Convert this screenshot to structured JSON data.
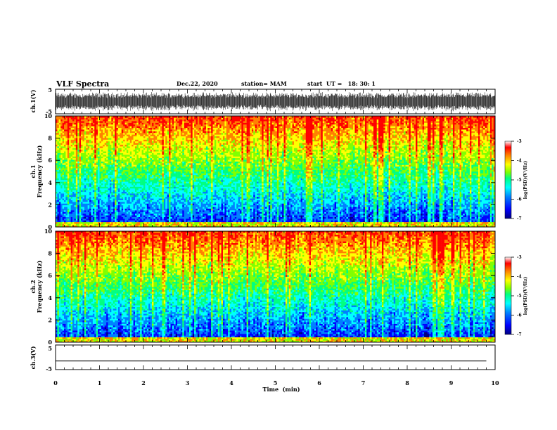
{
  "header": {
    "title": "VLF Spectra",
    "date": "Dec.22, 2020",
    "station": "station= MAM",
    "start": "start  UT =   18: 30: 1"
  },
  "colors": {
    "spectrum": [
      "#000080",
      "#0000ff",
      "#0080ff",
      "#00ffff",
      "#00ff80",
      "#80ff00",
      "#ffff00",
      "#ff8000",
      "#ff0000"
    ],
    "waveform": "#000000"
  },
  "chart_data": [
    {
      "type": "line",
      "name": "ch1-waveform",
      "ylabel": "ch.1(V)",
      "ylim": [
        -5,
        5
      ],
      "yticks": [
        "5",
        "-5"
      ],
      "xlim": [
        0,
        10
      ],
      "note_values": "dense noise waveform roughly spanning -4 to 4 V"
    },
    {
      "type": "heatmap",
      "name": "ch1-spectrogram",
      "ylabel": "ch.1\nFrequency (kHz)",
      "ylim": [
        0,
        10
      ],
      "yticks": [
        "0",
        "2",
        "4",
        "6",
        "8",
        "10"
      ],
      "xlim": [
        0,
        10
      ],
      "colorbar": {
        "label": "log(PSD)(V²/Hz)",
        "range": [
          -7,
          -3
        ],
        "ticks": [
          "-3",
          "-4",
          "-5",
          "-6",
          "-7"
        ]
      }
    },
    {
      "type": "heatmap",
      "name": "ch2-spectrogram",
      "ylabel": "ch.2\nFrequency (kHz)",
      "ylim": [
        0,
        10
      ],
      "yticks": [
        "0",
        "2",
        "4",
        "6",
        "8",
        "10"
      ],
      "xlim": [
        0,
        10
      ],
      "colorbar": {
        "label": "log(PSD)(V²/Hz)",
        "range": [
          -7,
          -3
        ],
        "ticks": [
          "-3",
          "-4",
          "-5",
          "-6",
          "-7"
        ]
      }
    },
    {
      "type": "line",
      "name": "ch3-waveform",
      "ylabel": "ch.3(V)",
      "ylim": [
        -5,
        5
      ],
      "yticks": [
        "5",
        "-5"
      ],
      "xlim": [
        0,
        10
      ],
      "x": [
        0,
        9.8
      ],
      "y": [
        -1.5,
        -1.5
      ]
    }
  ],
  "xaxis": {
    "label": "Time  (min)",
    "ticks": [
      "0",
      "1",
      "2",
      "3",
      "4",
      "5",
      "6",
      "7",
      "8",
      "9",
      "10"
    ]
  },
  "axis_labels": {
    "ch1_wave": "ch.1(V)",
    "ch1_spec_a": "ch.1",
    "ch1_spec_b": "Frequency (kHz)",
    "ch2_spec_a": "ch.2",
    "ch2_spec_b": "Frequency (kHz)",
    "ch3_wave": "ch.3(V)",
    "colorbar": "log(PSD)(V²/Hz)"
  }
}
